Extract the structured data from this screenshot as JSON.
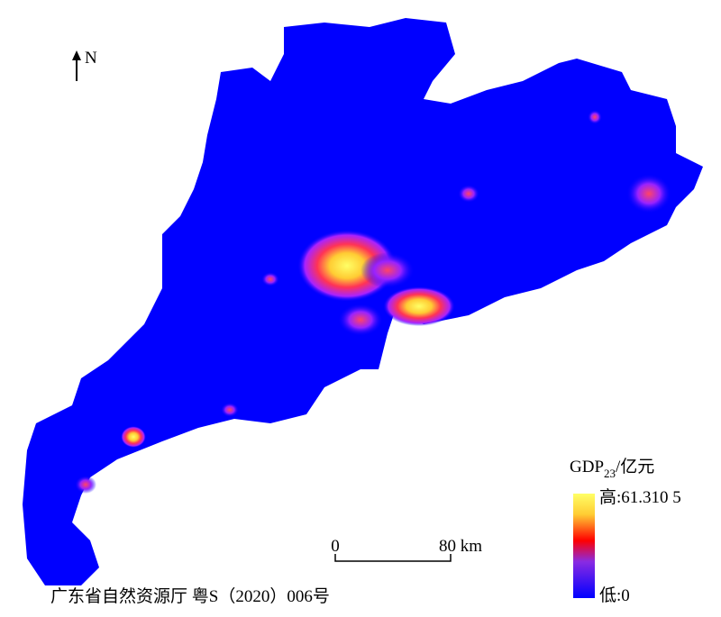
{
  "north": "N",
  "legend": {
    "title": "GDP",
    "title_subscript": "23",
    "title_unit": "/亿元",
    "max_label": "高:61.310 5",
    "min_label": "低:0"
  },
  "scale_bar": {
    "start_label": "0",
    "end_label": "80 km"
  },
  "credit": "广东省自然资源厅 粤S（2020）006号"
}
